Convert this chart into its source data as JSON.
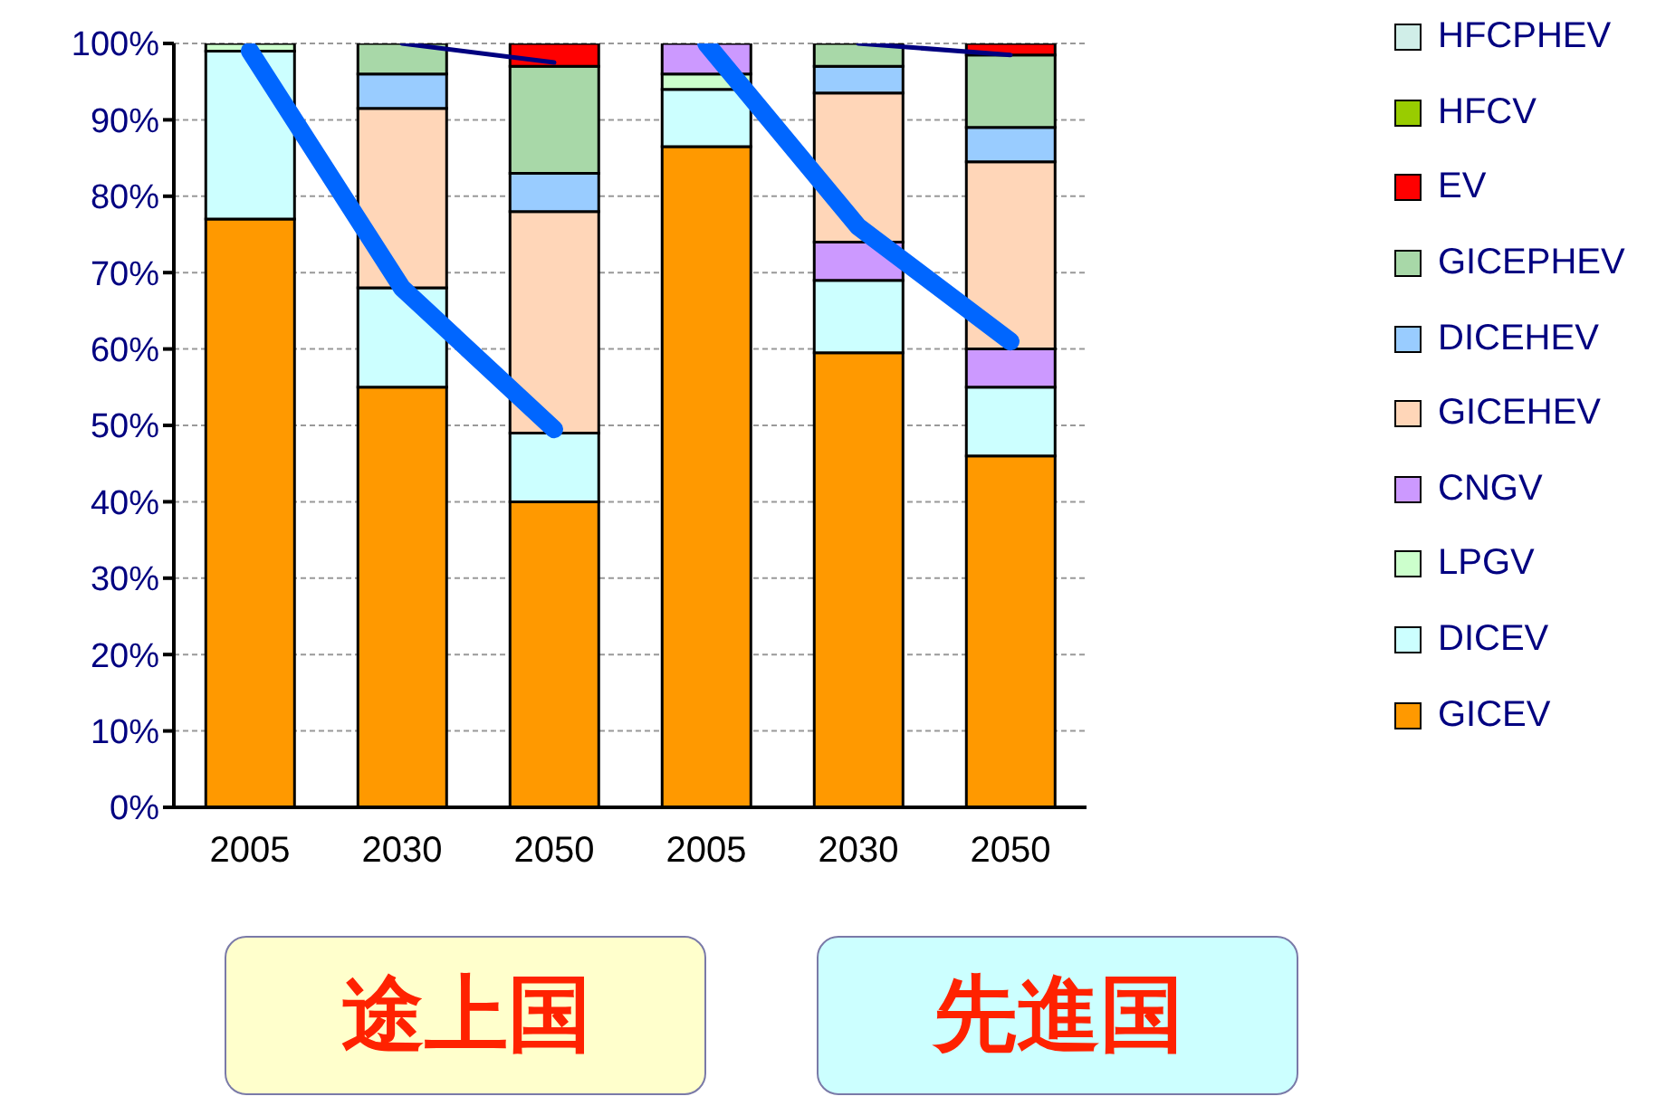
{
  "chart_data": {
    "type": "bar",
    "stacked": true,
    "categories": [
      "2005",
      "2030",
      "2050",
      "2005",
      "2030",
      "2050"
    ],
    "ylim": [
      0,
      100
    ],
    "yticks": [
      {
        "value": 0,
        "label": "0%"
      },
      {
        "value": 10,
        "label": "10%"
      },
      {
        "value": 20,
        "label": "20%"
      },
      {
        "value": 30,
        "label": "30%"
      },
      {
        "value": 40,
        "label": "40%"
      },
      {
        "value": 50,
        "label": "50%"
      },
      {
        "value": 60,
        "label": "60%"
      },
      {
        "value": 70,
        "label": "70%"
      },
      {
        "value": 80,
        "label": "80%"
      },
      {
        "value": 90,
        "label": "90%"
      },
      {
        "value": 100,
        "label": "100%"
      }
    ],
    "grid": "y",
    "legend": "right",
    "annotations": [
      "途上国",
      "先進国"
    ],
    "series": [
      {
        "name": "GICEV",
        "color": "#ff9900",
        "values": [
          77,
          55,
          40,
          86.5,
          59.5,
          46
        ]
      },
      {
        "name": "DICEV",
        "color": "#ccffff",
        "values": [
          22,
          13,
          9,
          7.5,
          9.5,
          9
        ]
      },
      {
        "name": "LPGV",
        "color": "#ccffcc",
        "values": [
          1,
          0,
          0,
          2,
          0,
          0
        ]
      },
      {
        "name": "CNGV",
        "color": "#cc99ff",
        "values": [
          0,
          0,
          0,
          4,
          5,
          5
        ]
      },
      {
        "name": "GICEHEV",
        "color": "#ffd6b8",
        "values": [
          0,
          23.5,
          29,
          0,
          19.5,
          24.5
        ]
      },
      {
        "name": "DICEHEV",
        "color": "#99ccff",
        "values": [
          0,
          4.5,
          5,
          0,
          3.5,
          4.5
        ]
      },
      {
        "name": "GICEPHEV",
        "color": "#a8d8a8",
        "values": [
          0,
          4,
          14,
          0,
          3,
          9.5
        ]
      },
      {
        "name": "EV",
        "color": "#ff0000",
        "values": [
          0,
          0,
          3,
          0,
          0,
          1.5
        ]
      },
      {
        "name": "HFCV",
        "color": "#99cc00",
        "values": [
          0,
          0,
          0,
          0,
          0,
          0
        ]
      },
      {
        "name": "HFCPHEV",
        "color": "#d0eee8",
        "values": [
          0,
          0,
          0,
          0,
          0,
          0
        ]
      },
      {
        "type": "line",
        "color": "#0066ff",
        "values": [
          99,
          68,
          49.5,
          null,
          null,
          null
        ]
      },
      {
        "type": "line",
        "color": "#0066ff",
        "values": [
          null,
          null,
          null,
          100,
          76,
          61
        ]
      },
      {
        "type": "line",
        "color": "#000080",
        "values": [
          null,
          100,
          97.5,
          null,
          null,
          null
        ]
      },
      {
        "type": "line",
        "color": "#000080",
        "values": [
          null,
          null,
          null,
          null,
          100,
          98.5
        ]
      }
    ]
  }
}
